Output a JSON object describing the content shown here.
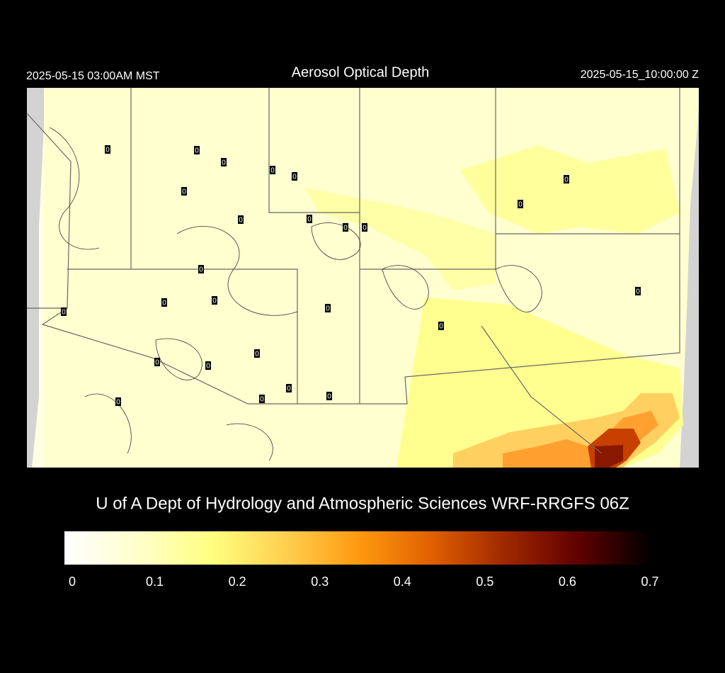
{
  "header": {
    "left": "2025-05-15 03:00AM MST",
    "title": "Aerosol Optical Depth",
    "right": "2025-05-15_10:00:00 Z"
  },
  "stations": [
    0,
    0,
    0,
    0,
    0,
    0,
    0,
    0,
    0,
    0,
    0,
    0,
    0,
    0,
    0,
    0,
    0,
    0,
    0,
    0,
    0,
    0,
    0,
    0,
    0,
    0
  ],
  "credit": "U of A Dept of Hydrology and Atmospheric Sciences WRF-RRGFS 06Z",
  "colorbar": {
    "range": [
      0,
      0.7
    ],
    "ticks": [
      0,
      0.1,
      0.2,
      0.3,
      0.4,
      0.5,
      0.6,
      0.7
    ],
    "colors": [
      "#ffffff",
      "#ffffcc",
      "#ffff80",
      "#ffd050",
      "#ff9a10",
      "#e06000",
      "#a02800",
      "#600000",
      "#000000"
    ]
  }
}
